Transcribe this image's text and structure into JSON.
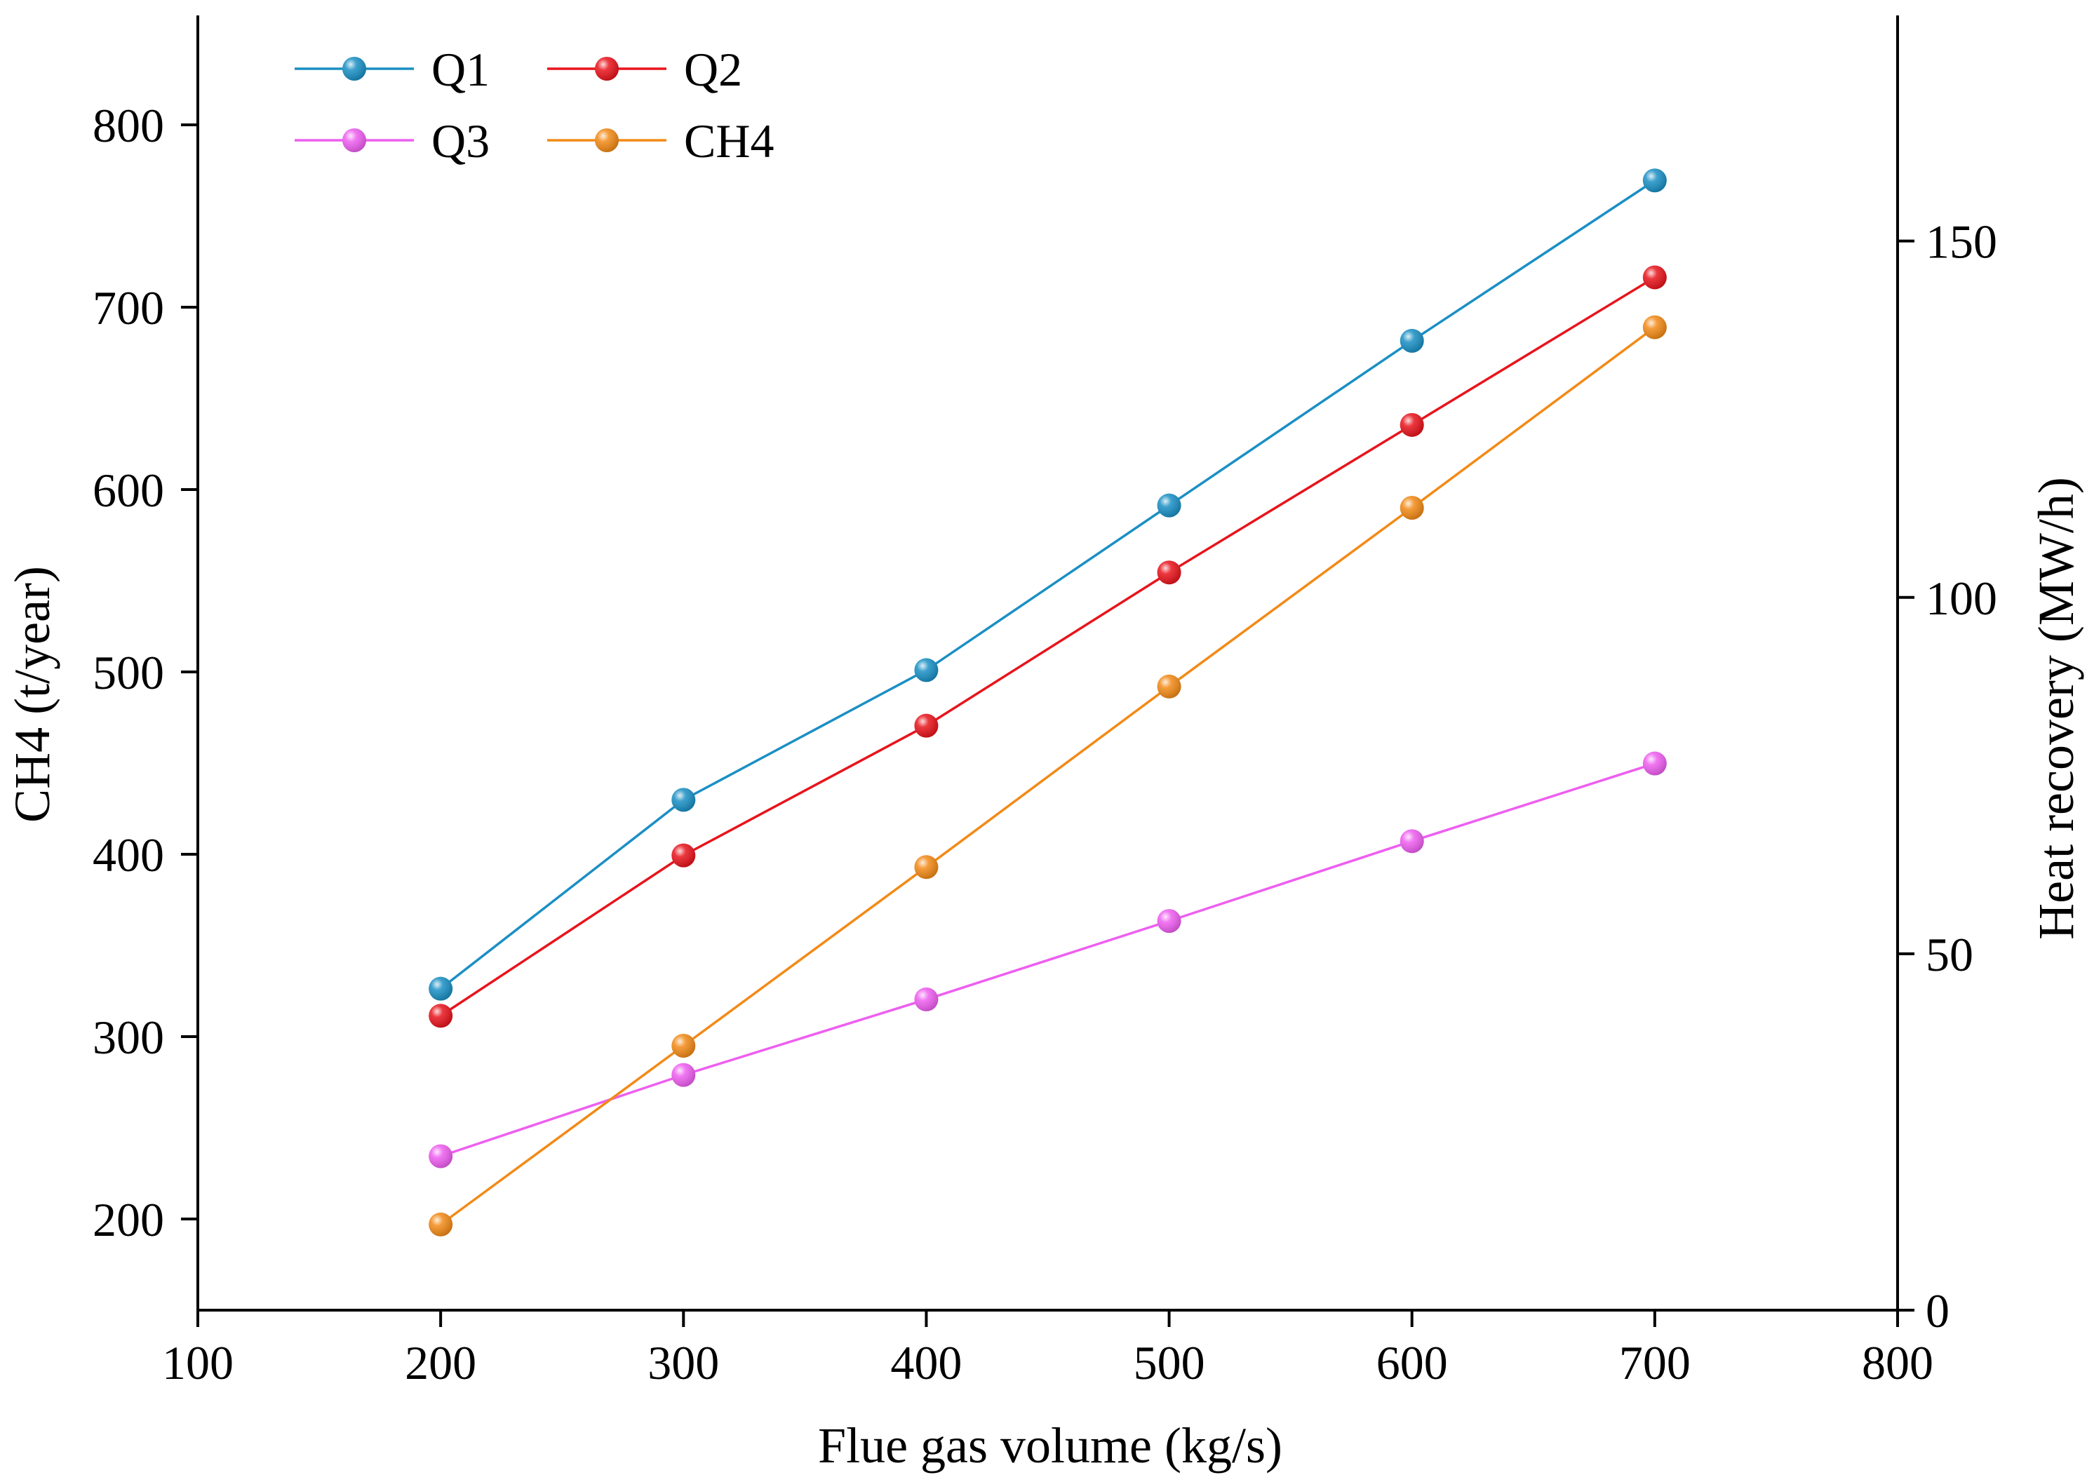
{
  "chart_data": {
    "type": "line",
    "title": "",
    "x": [
      200,
      300,
      400,
      500,
      600,
      700
    ],
    "xlabel": "Flue gas volume (kg/s)",
    "ylabel_left": "CH4 (t/year)",
    "ylabel_right": "Heat recovery (MW/h)",
    "xlim": [
      100,
      800
    ],
    "ylim_left": [
      150,
      860
    ],
    "ylim_right": [
      0,
      181.65
    ],
    "x_ticks": [
      100,
      200,
      300,
      400,
      500,
      600,
      700,
      800
    ],
    "y_ticks_left": [
      200,
      300,
      400,
      500,
      600,
      700,
      800
    ],
    "y_ticks_right": [
      0,
      50,
      100,
      150
    ],
    "legend_position": "top-left",
    "series": [
      {
        "name": "Q1",
        "axis": "right",
        "color": "#1a8fc4",
        "values": [
          45.1,
          71.6,
          89.8,
          112.9,
          136.0,
          158.5
        ]
      },
      {
        "name": "Q2",
        "axis": "right",
        "color": "#e8141c",
        "values": [
          41.3,
          63.8,
          82.0,
          103.5,
          124.2,
          144.9
        ]
      },
      {
        "name": "Q3",
        "axis": "right",
        "color": "#ee5ef0",
        "values": [
          21.6,
          33.0,
          43.6,
          54.6,
          65.8,
          76.7
        ]
      },
      {
        "name": "CH4",
        "axis": "left",
        "color": "#f28a17",
        "values": [
          197,
          295,
          393,
          492,
          590,
          689
        ]
      }
    ]
  }
}
